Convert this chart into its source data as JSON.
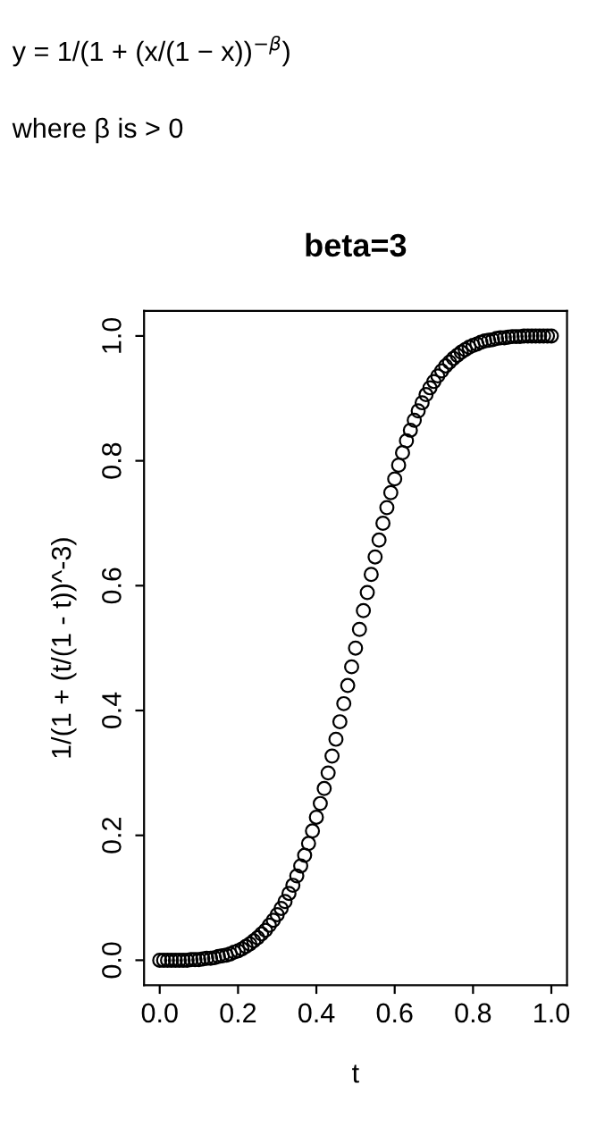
{
  "chart_data": {
    "type": "scatter",
    "title": "beta=3",
    "xlabel": "t",
    "ylabel": "1/(1 + (t/(1 - t))^-3)",
    "annotations": [
      "y = 1/(1 + (x/(1 − x))$^{−β}$)",
      "where β is > 0"
    ],
    "x": [
      0,
      0.01,
      0.02,
      0.03,
      0.04,
      0.05,
      0.06,
      0.07,
      0.08,
      0.09,
      0.1,
      0.11,
      0.12,
      0.13,
      0.14,
      0.15,
      0.16,
      0.17,
      0.18,
      0.19,
      0.2,
      0.21,
      0.22,
      0.23,
      0.24,
      0.25,
      0.26,
      0.27,
      0.28,
      0.29,
      0.3,
      0.31,
      0.32,
      0.33,
      0.34,
      0.35,
      0.36,
      0.37,
      0.38,
      0.39,
      0.4,
      0.41,
      0.42,
      0.43,
      0.44,
      0.45,
      0.46,
      0.47,
      0.48,
      0.49,
      0.5,
      0.51,
      0.52,
      0.53,
      0.54,
      0.55,
      0.56,
      0.57,
      0.58,
      0.59,
      0.6,
      0.61,
      0.62,
      0.63,
      0.64,
      0.65,
      0.66,
      0.67,
      0.68,
      0.69,
      0.7,
      0.71,
      0.72,
      0.73,
      0.74,
      0.75,
      0.76,
      0.77,
      0.78,
      0.79,
      0.8,
      0.81,
      0.82,
      0.83,
      0.84,
      0.85,
      0.86,
      0.87,
      0.88,
      0.89,
      0.9,
      0.91,
      0.92,
      0.93,
      0.94,
      0.95,
      0.96,
      0.97,
      0.98,
      0.99,
      1
    ],
    "series": [
      {
        "color": "#000000",
        "values": [
          0,
          0,
          0,
          0,
          0,
          0,
          0,
          0,
          0.001,
          0.001,
          0.001,
          0.002,
          0.003,
          0.003,
          0.004,
          0.006,
          0.007,
          0.008,
          0.01,
          0.013,
          0.015,
          0.018,
          0.022,
          0.026,
          0.031,
          0.036,
          0.042,
          0.048,
          0.056,
          0.064,
          0.073,
          0.083,
          0.094,
          0.107,
          0.12,
          0.135,
          0.151,
          0.168,
          0.187,
          0.207,
          0.229,
          0.251,
          0.275,
          0.3,
          0.327,
          0.354,
          0.382,
          0.411,
          0.44,
          0.47,
          0.5,
          0.53,
          0.56,
          0.589,
          0.618,
          0.646,
          0.673,
          0.7,
          0.725,
          0.749,
          0.771,
          0.793,
          0.813,
          0.832,
          0.849,
          0.865,
          0.88,
          0.893,
          0.906,
          0.917,
          0.927,
          0.936,
          0.944,
          0.952,
          0.958,
          0.964,
          0.969,
          0.974,
          0.978,
          0.982,
          0.985,
          0.987,
          0.99,
          0.992,
          0.993,
          0.994,
          0.996,
          0.997,
          0.997,
          0.998,
          0.999,
          0.999,
          0.999,
          1,
          1,
          1,
          1,
          1,
          1,
          1,
          1
        ]
      }
    ],
    "marker": "circle",
    "grid": false,
    "legend": false,
    "xlim": [
      -0.04,
      1.04
    ],
    "ylim": [
      -0.04,
      1.04
    ],
    "xticks": [
      {
        "value": 0,
        "label": "0.0"
      },
      {
        "value": 0.2,
        "label": "0.2"
      },
      {
        "value": 0.4,
        "label": "0.4"
      },
      {
        "value": 0.6,
        "label": "0.6"
      },
      {
        "value": 0.8,
        "label": "0.8"
      },
      {
        "value": 1,
        "label": "1.0"
      }
    ],
    "yticks": [
      {
        "value": 0,
        "label": "0.0"
      },
      {
        "value": 0.2,
        "label": "0.2"
      },
      {
        "value": 0.4,
        "label": "0.4"
      },
      {
        "value": 0.6,
        "label": "0.6"
      },
      {
        "value": 0.8,
        "label": "0.8"
      },
      {
        "value": 1,
        "label": "1.0"
      }
    ]
  }
}
